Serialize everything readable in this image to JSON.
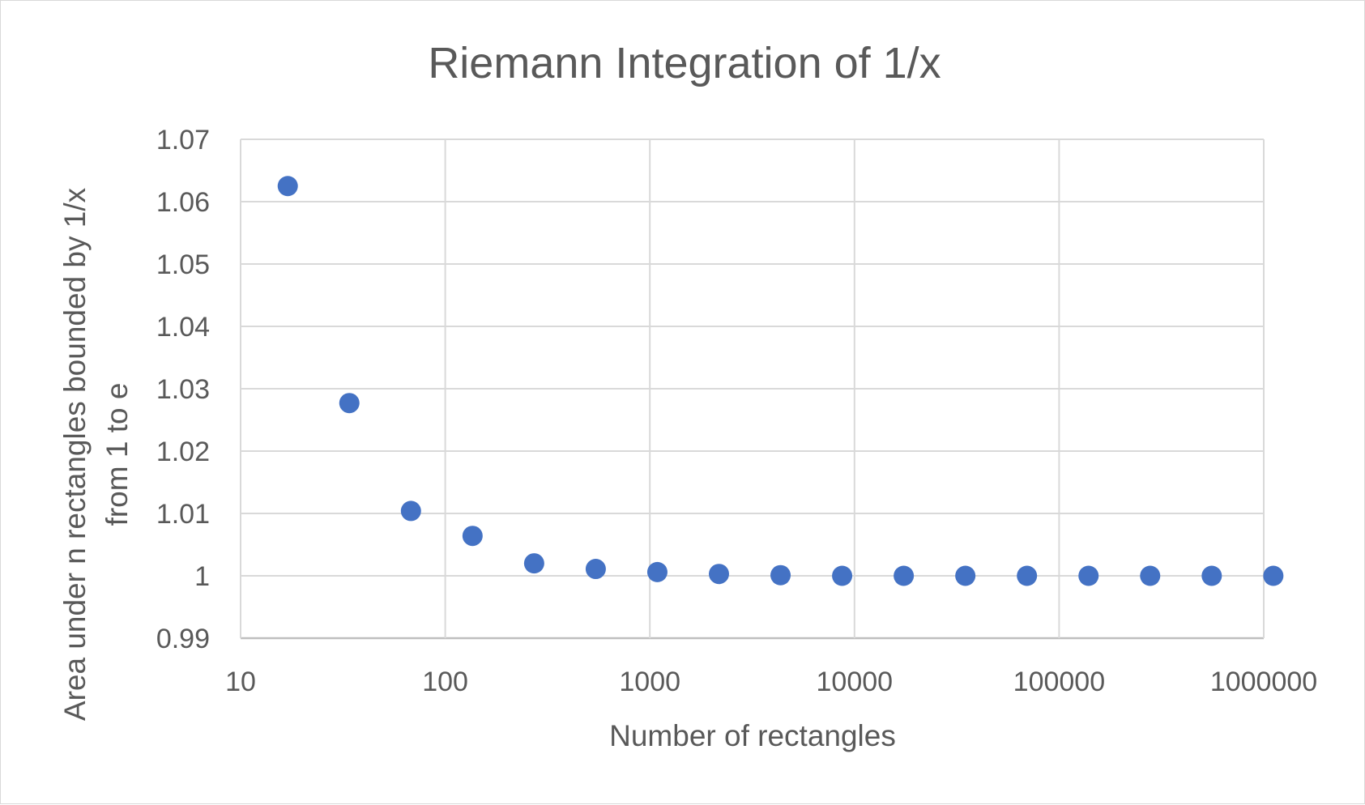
{
  "chart_data": {
    "type": "scatter",
    "title": "Riemann Integration of 1/x",
    "xlabel": "Number of rectangles",
    "ylabel_lines": [
      "Area under n rectangles bounded by 1/x",
      "from 1 to e"
    ],
    "x_scale": "log",
    "xlim": [
      10,
      1000000
    ],
    "ylim": [
      0.99,
      1.07
    ],
    "x_ticks": [
      "10",
      "100",
      "1000",
      "10000",
      "100000",
      "1000000"
    ],
    "y_ticks": [
      "0.99",
      "1",
      "1.01",
      "1.02",
      "1.03",
      "1.04",
      "1.05",
      "1.06",
      "1.07"
    ],
    "grid": true,
    "legend": "none",
    "marker_color": "#4472c4",
    "series": [
      {
        "x": [
          17,
          34,
          68,
          136,
          272,
          544,
          1088,
          2176,
          4352,
          8704,
          17408,
          34816,
          69632,
          139264,
          278528,
          557056,
          1114112
        ],
        "y": [
          1.0625,
          1.0277,
          1.0104,
          1.0064,
          1.002,
          1.0011,
          1.0006,
          1.0003,
          1.0001,
          1.0,
          1.0,
          1.0,
          1.0,
          1.0,
          1.0,
          1.0,
          1.0
        ]
      }
    ]
  }
}
